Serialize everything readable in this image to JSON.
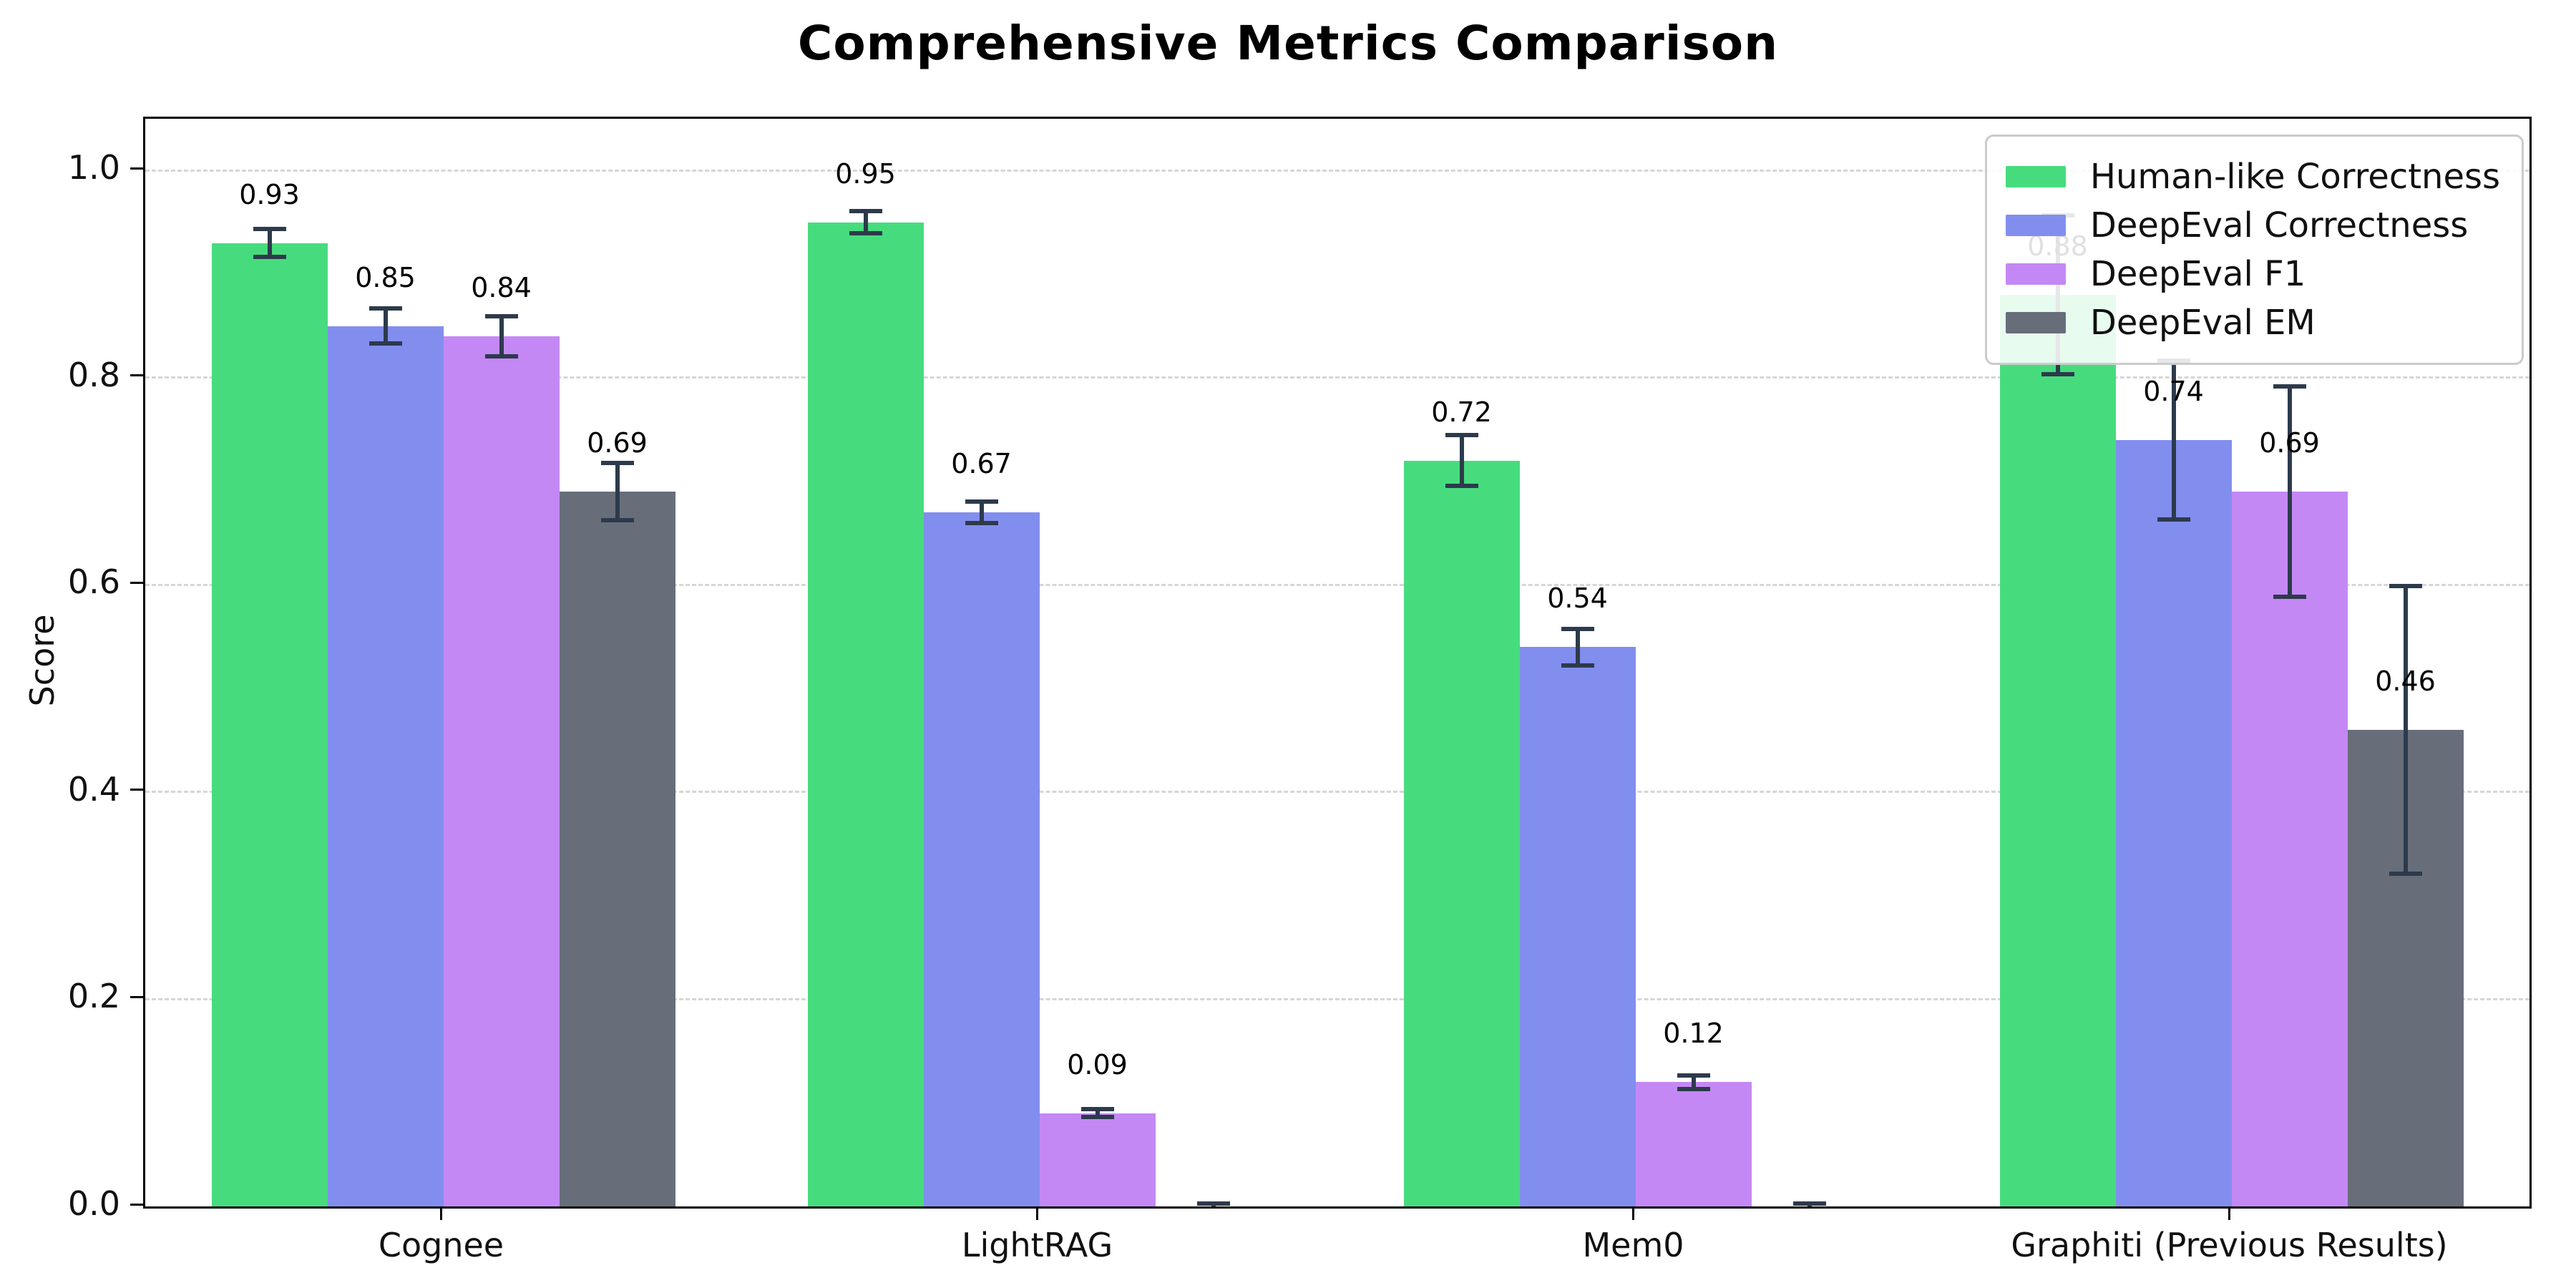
{
  "title": "Comprehensive Metrics Comparison",
  "chart_data": {
    "type": "bar",
    "title": "Comprehensive Metrics Comparison",
    "xlabel": "",
    "ylabel": "Score",
    "ylim": [
      0,
      1.05
    ],
    "yticks": [
      "0.0",
      "0.2",
      "0.4",
      "0.6",
      "0.8",
      "1.0"
    ],
    "grid": "horizontal-dashed",
    "legend_position": "upper-right",
    "bar_label_format": "two-decimals",
    "categories": [
      "Cognee",
      "LightRAG",
      "Mem0",
      "Graphiti (Previous Results)"
    ],
    "series": [
      {
        "name": "Human-like Correctness",
        "color": "#46dc7e",
        "values": [
          0.93,
          0.95,
          0.72,
          0.88
        ],
        "errors": [
          0.015,
          0.012,
          0.026,
          0.078
        ],
        "labels": [
          "0.93",
          "0.95",
          "0.72",
          "0.88"
        ]
      },
      {
        "name": "DeepEval Correctness",
        "color": "#828eee",
        "values": [
          0.85,
          0.67,
          0.54,
          0.74
        ],
        "errors": [
          0.018,
          0.012,
          0.019,
          0.078
        ],
        "labels": [
          "0.85",
          "0.67",
          "0.54",
          "0.74"
        ]
      },
      {
        "name": "DeepEval F1",
        "color": "#c488f5",
        "values": [
          0.84,
          0.09,
          0.12,
          0.69
        ],
        "errors": [
          0.021,
          0.005,
          0.008,
          0.103
        ],
        "labels": [
          "0.84",
          "0.09",
          "0.12",
          "0.69"
        ]
      },
      {
        "name": "DeepEval EM",
        "color": "#676e7a",
        "values": [
          0.69,
          0.0,
          0.0,
          0.46
        ],
        "errors": [
          0.029,
          0.004,
          0.004,
          0.14
        ],
        "labels": [
          "0.69",
          null,
          null,
          "0.46"
        ]
      }
    ],
    "error_bar_color": "#2d3a4b"
  }
}
